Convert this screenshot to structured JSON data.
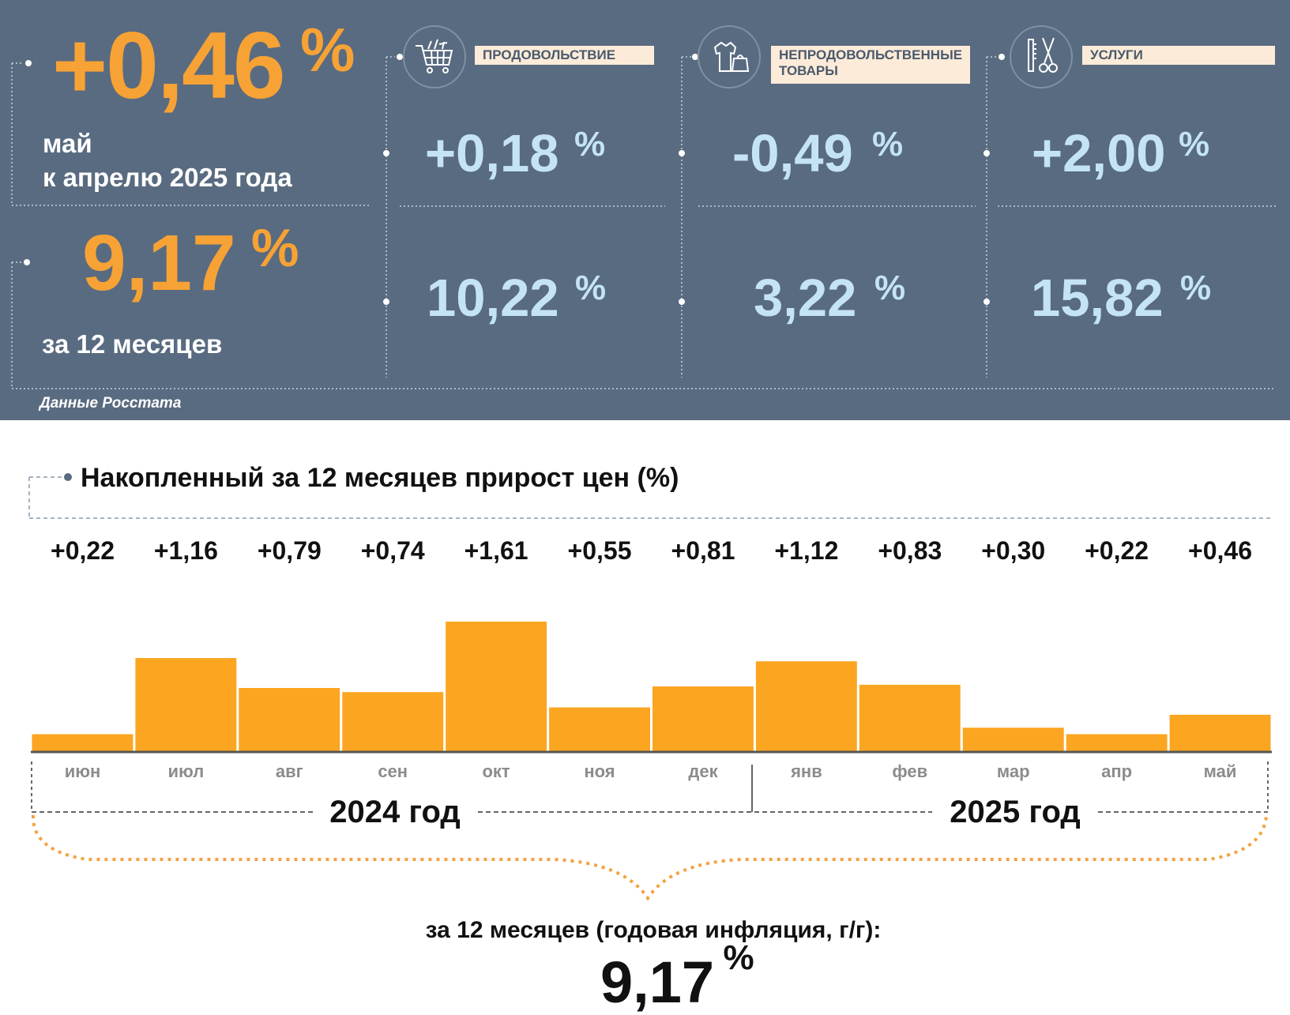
{
  "summary": {
    "monthly": {
      "value": "+0,46",
      "unit": "%",
      "line1": "май",
      "line2": "к апрелю 2025 года"
    },
    "annual": {
      "value": "9,17",
      "unit": "%",
      "label": "за 12 месяцев"
    },
    "source": "Данные Росстата"
  },
  "categories": [
    {
      "label": "ПРОДОВОЛЬСТВИЕ",
      "icon": "shopping-cart-icon",
      "monthly": "+0,18",
      "annual": "10,22",
      "unit": "%"
    },
    {
      "label": "НЕПРОДОВОЛЬСТВЕННЫЕ ТОВАРЫ",
      "icon": "clothing-icon",
      "monthly": "-0,49",
      "annual": "3,22",
      "unit": "%"
    },
    {
      "label": "УСЛУГИ",
      "icon": "scissors-comb-icon",
      "monthly": "+2,00",
      "annual": "15,82",
      "unit": "%"
    }
  ],
  "chart_data": {
    "type": "bar",
    "title": "Накопленный за 12 месяцев прирост цен (%)",
    "categories": [
      "июн",
      "июл",
      "авг",
      "сен",
      "окт",
      "ноя",
      "дек",
      "янв",
      "фев",
      "мар",
      "апр",
      "май"
    ],
    "values": [
      0.22,
      1.16,
      0.79,
      0.74,
      1.61,
      0.55,
      0.81,
      1.12,
      0.83,
      0.3,
      0.22,
      0.46
    ],
    "value_labels": [
      "+0,22",
      "+1,16",
      "+0,79",
      "+0,74",
      "+1,61",
      "+0,55",
      "+0,81",
      "+1,12",
      "+0,83",
      "+0,30",
      "+0,22",
      "+0,46"
    ],
    "years": [
      "2024 год",
      "2025 год"
    ],
    "ylim": [
      0,
      1.61
    ],
    "grid": false,
    "bar_color": "#fba521"
  },
  "footer": {
    "label": "за 12 месяцев (годовая инфляция, г/г):",
    "value": "9,17",
    "unit": "%"
  },
  "colors": {
    "panel": "#596b80",
    "orange": "#f7a235",
    "light_blue": "#c4e4f4",
    "tag_bg": "#fcebd8"
  }
}
